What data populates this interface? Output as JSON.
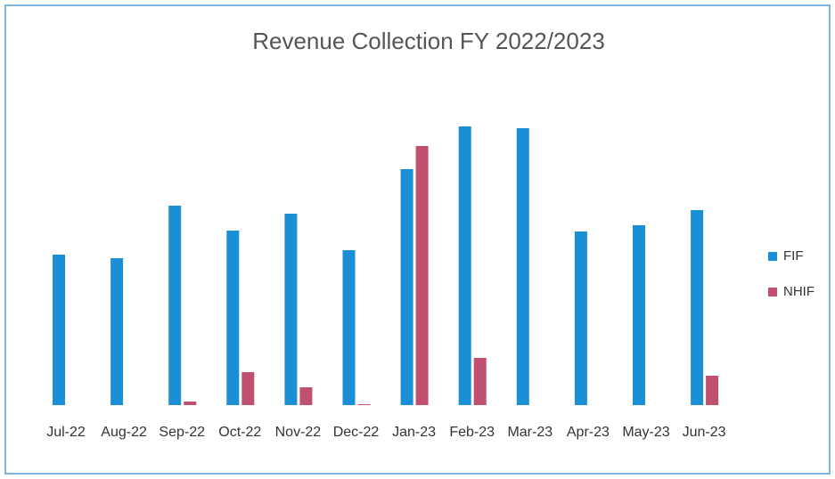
{
  "chart_data": {
    "type": "bar",
    "title": "Revenue Collection FY 2022/2023",
    "categories": [
      "Jul-22",
      "Aug-22",
      "Sep-22",
      "Oct-22",
      "Nov-22",
      "Dec-22",
      "Jan-23",
      "Feb-23",
      "Mar-23",
      "Apr-23",
      "May-23",
      "Jun-23"
    ],
    "series": [
      {
        "name": "FIF",
        "color": "#1a8fd6",
        "values": [
          169,
          165,
          224,
          196,
          215,
          174,
          265,
          313,
          311,
          195,
          202,
          219
        ]
      },
      {
        "name": "NHIF",
        "color": "#c0506e",
        "values": [
          0,
          0,
          4,
          37,
          20,
          1,
          291,
          53,
          0,
          0,
          0,
          33
        ]
      }
    ]
  }
}
